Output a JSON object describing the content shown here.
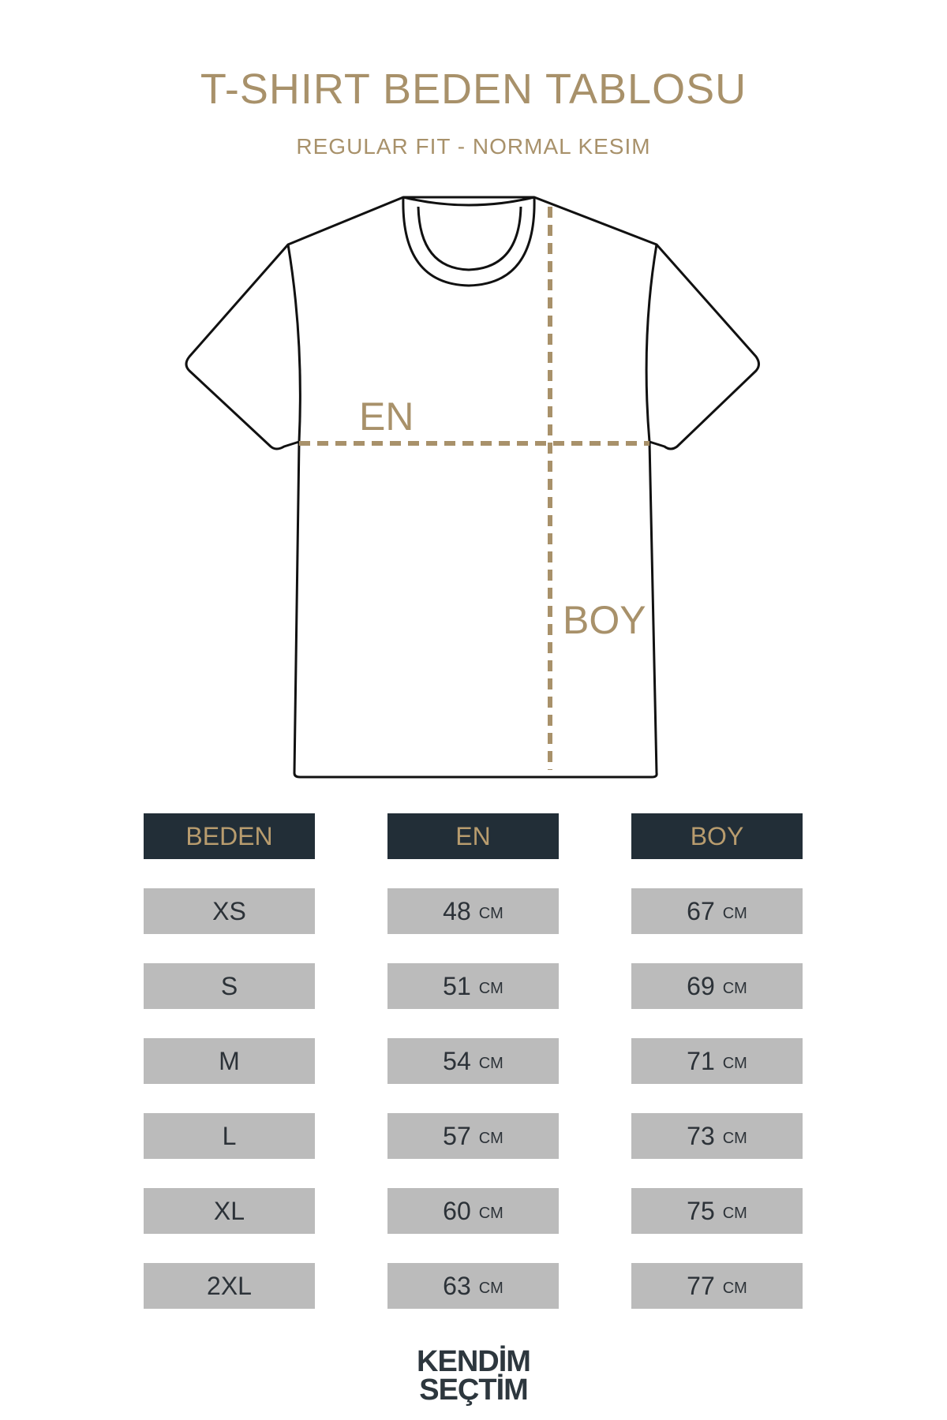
{
  "title": "T-SHIRT BEDEN TABLOSU",
  "subtitle": "REGULAR FIT - NORMAL KESIM",
  "diagram": {
    "width_label": "EN",
    "length_label": "BOY"
  },
  "colors": {
    "accent": "#a8916a",
    "header_bg": "#222e37",
    "cell_bg": "#bbbbbb"
  },
  "table": {
    "headers": [
      "BEDEN",
      "EN",
      "BOY"
    ],
    "unit": "CM",
    "rows": [
      {
        "size": "XS",
        "en": "48",
        "boy": "67"
      },
      {
        "size": "S",
        "en": "51",
        "boy": "69"
      },
      {
        "size": "M",
        "en": "54",
        "boy": "71"
      },
      {
        "size": "L",
        "en": "57",
        "boy": "73"
      },
      {
        "size": "XL",
        "en": "60",
        "boy": "75"
      },
      {
        "size": "2XL",
        "en": "63",
        "boy": "77"
      }
    ]
  },
  "logo": {
    "line1": "KENDİM",
    "line2": "SEÇTİM"
  }
}
